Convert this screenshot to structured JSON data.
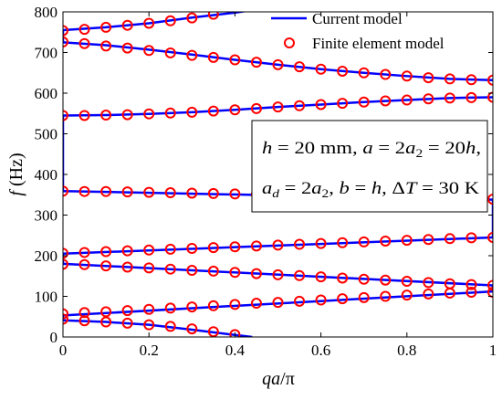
{
  "chart_data": {
    "type": "line",
    "xlabel": "qa/π",
    "ylabel": "f (Hz)",
    "xlim": [
      0,
      1
    ],
    "ylim": [
      0,
      800
    ],
    "x_ticks": [
      "0",
      "0.2",
      "0.4",
      "0.6",
      "0.8",
      "1"
    ],
    "y_ticks": [
      "0",
      "100",
      "200",
      "300",
      "400",
      "500",
      "600",
      "700",
      "800"
    ],
    "grid": false,
    "legend": "top-right",
    "colors": {
      "line": "#0000ff",
      "marker": "#ff0000"
    },
    "annotation": {
      "line1": "h = 20 mm, a = 2a2 = 20h,",
      "line2": "ad = 2a2, b = h, ΔT = 30 K"
    },
    "series": [
      {
        "name": "Current model",
        "style": "solid-line",
        "curves": [
          {
            "x": [
              0,
              0.1,
              0.2,
              0.3,
              0.4,
              0.44
            ],
            "y": [
              41,
              37,
              30,
              18,
              5,
              0
            ]
          },
          {
            "x": [
              0,
              1
            ],
            "y": [
              53,
              112
            ]
          },
          {
            "x": [
              0,
              1
            ],
            "y": [
              180,
              127
            ]
          },
          {
            "x": [
              0,
              1
            ],
            "y": [
              205,
              245
            ]
          },
          {
            "x": [
              0,
              1
            ],
            "y": [
              359,
              338
            ]
          },
          {
            "x": [
              0,
              0.1,
              0.2,
              0.3,
              0.4,
              0.5,
              0.6,
              0.7,
              0.8,
              0.9,
              1
            ],
            "y": [
              545,
              546,
              549,
              553,
              559,
              566,
              572,
              578,
              583,
              588,
              590
            ]
          },
          {
            "x": [
              0,
              0.1,
              0.2,
              0.3,
              0.4,
              0.5,
              0.6,
              0.7,
              0.8,
              0.9,
              1
            ],
            "y": [
              725,
              718,
              707,
              695,
              682,
              670,
              659,
              650,
              642,
              635,
              632
            ]
          },
          {
            "x": [
              0,
              0.1,
              0.2,
              0.3,
              0.4,
              0.45
            ],
            "y": [
              755,
              762,
              772,
              786,
              798,
              806
            ]
          },
          {
            "x": [
              0,
              0
            ],
            "y": [
              41,
              53
            ]
          },
          {
            "x": [
              0,
              0
            ],
            "y": [
              180,
              205
            ]
          },
          {
            "x": [
              0,
              0
            ],
            "y": [
              359,
              545
            ]
          },
          {
            "x": [
              0,
              0
            ],
            "y": [
              725,
              755
            ]
          },
          {
            "x": [
              1,
              1
            ],
            "y": [
              112,
              127
            ]
          },
          {
            "x": [
              1,
              1
            ],
            "y": [
              245,
              338
            ]
          }
        ]
      },
      {
        "name": "Finite element model",
        "style": "open-circle",
        "points": [
          {
            "x": 0,
            "y": 44
          },
          {
            "x": 0.05,
            "y": 40
          },
          {
            "x": 0.1,
            "y": 37
          },
          {
            "x": 0.15,
            "y": 34
          },
          {
            "x": 0.2,
            "y": 30
          },
          {
            "x": 0.25,
            "y": 26
          },
          {
            "x": 0.3,
            "y": 20
          },
          {
            "x": 0.35,
            "y": 13
          },
          {
            "x": 0.4,
            "y": 6
          },
          {
            "x": 0,
            "y": 57
          },
          {
            "x": 0.05,
            "y": 60
          },
          {
            "x": 0.1,
            "y": 62
          },
          {
            "x": 0.15,
            "y": 65
          },
          {
            "x": 0.2,
            "y": 68
          },
          {
            "x": 0.25,
            "y": 71
          },
          {
            "x": 0.3,
            "y": 74
          },
          {
            "x": 0.35,
            "y": 77
          },
          {
            "x": 0.4,
            "y": 80
          },
          {
            "x": 0.45,
            "y": 83
          },
          {
            "x": 0.5,
            "y": 85
          },
          {
            "x": 0.55,
            "y": 88
          },
          {
            "x": 0.6,
            "y": 91
          },
          {
            "x": 0.65,
            "y": 94
          },
          {
            "x": 0.7,
            "y": 97
          },
          {
            "x": 0.75,
            "y": 100
          },
          {
            "x": 0.8,
            "y": 103
          },
          {
            "x": 0.85,
            "y": 106
          },
          {
            "x": 0.9,
            "y": 108
          },
          {
            "x": 0.95,
            "y": 110
          },
          {
            "x": 1,
            "y": 110
          },
          {
            "x": 0,
            "y": 179
          },
          {
            "x": 0.05,
            "y": 178
          },
          {
            "x": 0.1,
            "y": 175
          },
          {
            "x": 0.15,
            "y": 172
          },
          {
            "x": 0.2,
            "y": 170
          },
          {
            "x": 0.25,
            "y": 167
          },
          {
            "x": 0.3,
            "y": 164
          },
          {
            "x": 0.35,
            "y": 162
          },
          {
            "x": 0.4,
            "y": 159
          },
          {
            "x": 0.45,
            "y": 156
          },
          {
            "x": 0.5,
            "y": 153
          },
          {
            "x": 0.55,
            "y": 151
          },
          {
            "x": 0.6,
            "y": 148
          },
          {
            "x": 0.65,
            "y": 145
          },
          {
            "x": 0.7,
            "y": 142
          },
          {
            "x": 0.75,
            "y": 140
          },
          {
            "x": 0.8,
            "y": 137
          },
          {
            "x": 0.85,
            "y": 134
          },
          {
            "x": 0.9,
            "y": 131
          },
          {
            "x": 0.95,
            "y": 129
          },
          {
            "x": 1,
            "y": 127
          },
          {
            "x": 0,
            "y": 206
          },
          {
            "x": 0.05,
            "y": 208
          },
          {
            "x": 0.1,
            "y": 210
          },
          {
            "x": 0.15,
            "y": 212
          },
          {
            "x": 0.2,
            "y": 214
          },
          {
            "x": 0.25,
            "y": 216
          },
          {
            "x": 0.3,
            "y": 218
          },
          {
            "x": 0.35,
            "y": 220
          },
          {
            "x": 0.4,
            "y": 222
          },
          {
            "x": 0.45,
            "y": 224
          },
          {
            "x": 0.5,
            "y": 226
          },
          {
            "x": 0.55,
            "y": 228
          },
          {
            "x": 0.6,
            "y": 230
          },
          {
            "x": 0.65,
            "y": 232
          },
          {
            "x": 0.7,
            "y": 234
          },
          {
            "x": 0.75,
            "y": 236
          },
          {
            "x": 0.8,
            "y": 238
          },
          {
            "x": 0.85,
            "y": 240
          },
          {
            "x": 0.9,
            "y": 242
          },
          {
            "x": 0.95,
            "y": 244
          },
          {
            "x": 1,
            "y": 245
          },
          {
            "x": 0,
            "y": 359
          },
          {
            "x": 0.05,
            "y": 358
          },
          {
            "x": 0.1,
            "y": 358
          },
          {
            "x": 0.15,
            "y": 357
          },
          {
            "x": 0.2,
            "y": 356
          },
          {
            "x": 0.25,
            "y": 355
          },
          {
            "x": 0.3,
            "y": 354
          },
          {
            "x": 0.35,
            "y": 353
          },
          {
            "x": 0.4,
            "y": 352
          },
          {
            "x": 0.45,
            "y": 351
          },
          {
            "x": 0.5,
            "y": 349
          },
          {
            "x": 0.55,
            "y": 348
          },
          {
            "x": 0.6,
            "y": 347
          },
          {
            "x": 0.65,
            "y": 346
          },
          {
            "x": 0.7,
            "y": 345
          },
          {
            "x": 0.75,
            "y": 344
          },
          {
            "x": 0.8,
            "y": 343
          },
          {
            "x": 0.85,
            "y": 342
          },
          {
            "x": 0.9,
            "y": 341
          },
          {
            "x": 0.95,
            "y": 340
          },
          {
            "x": 1,
            "y": 339
          },
          {
            "x": 0,
            "y": 545
          },
          {
            "x": 0.05,
            "y": 545
          },
          {
            "x": 0.1,
            "y": 546
          },
          {
            "x": 0.15,
            "y": 547
          },
          {
            "x": 0.2,
            "y": 549
          },
          {
            "x": 0.25,
            "y": 551
          },
          {
            "x": 0.3,
            "y": 553
          },
          {
            "x": 0.35,
            "y": 556
          },
          {
            "x": 0.4,
            "y": 559
          },
          {
            "x": 0.45,
            "y": 562
          },
          {
            "x": 0.5,
            "y": 566
          },
          {
            "x": 0.55,
            "y": 569
          },
          {
            "x": 0.6,
            "y": 572
          },
          {
            "x": 0.65,
            "y": 575
          },
          {
            "x": 0.7,
            "y": 578
          },
          {
            "x": 0.75,
            "y": 581
          },
          {
            "x": 0.8,
            "y": 583
          },
          {
            "x": 0.85,
            "y": 586
          },
          {
            "x": 0.9,
            "y": 588
          },
          {
            "x": 0.95,
            "y": 589
          },
          {
            "x": 1,
            "y": 590
          },
          {
            "x": 0,
            "y": 726
          },
          {
            "x": 0.05,
            "y": 722
          },
          {
            "x": 0.1,
            "y": 716
          },
          {
            "x": 0.15,
            "y": 711
          },
          {
            "x": 0.2,
            "y": 705
          },
          {
            "x": 0.25,
            "y": 699
          },
          {
            "x": 0.3,
            "y": 693
          },
          {
            "x": 0.35,
            "y": 688
          },
          {
            "x": 0.4,
            "y": 682
          },
          {
            "x": 0.45,
            "y": 676
          },
          {
            "x": 0.5,
            "y": 670
          },
          {
            "x": 0.55,
            "y": 665
          },
          {
            "x": 0.6,
            "y": 659
          },
          {
            "x": 0.65,
            "y": 654
          },
          {
            "x": 0.7,
            "y": 650
          },
          {
            "x": 0.75,
            "y": 646
          },
          {
            "x": 0.8,
            "y": 642
          },
          {
            "x": 0.85,
            "y": 638
          },
          {
            "x": 0.9,
            "y": 635
          },
          {
            "x": 0.95,
            "y": 633
          },
          {
            "x": 1,
            "y": 632
          },
          {
            "x": 0,
            "y": 754
          },
          {
            "x": 0.05,
            "y": 757
          },
          {
            "x": 0.1,
            "y": 762
          },
          {
            "x": 0.15,
            "y": 767
          },
          {
            "x": 0.2,
            "y": 772
          },
          {
            "x": 0.25,
            "y": 778
          },
          {
            "x": 0.3,
            "y": 785
          },
          {
            "x": 0.35,
            "y": 794
          }
        ]
      }
    ]
  }
}
